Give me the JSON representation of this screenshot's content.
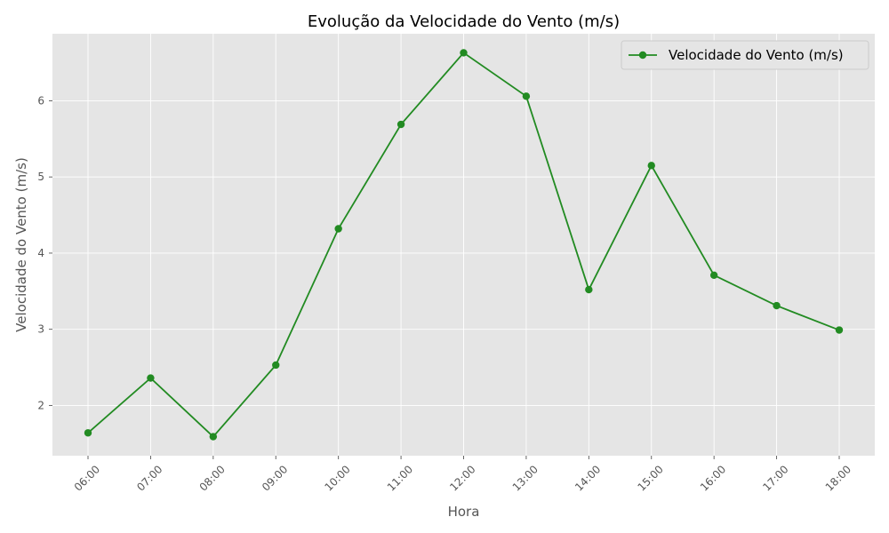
{
  "chart_data": {
    "type": "line",
    "title": "Evolução da Velocidade do Vento (m/s)",
    "xlabel": "Hora",
    "ylabel": "Velocidade do Vento (m/s)",
    "categories": [
      "06:00",
      "07:00",
      "08:00",
      "09:00",
      "10:00",
      "11:00",
      "12:00",
      "13:00",
      "14:00",
      "15:00",
      "16:00",
      "17:00",
      "18:00"
    ],
    "series": [
      {
        "name": "Velocidade do Vento (m/s)",
        "color": "#228b22",
        "marker": "circle",
        "values": [
          1.64,
          2.36,
          1.59,
          2.53,
          4.32,
          5.69,
          6.63,
          6.06,
          3.52,
          5.15,
          3.71,
          3.31,
          2.99
        ]
      }
    ],
    "ylim": [
      1.34,
      6.88
    ],
    "yticks": [
      2,
      3,
      4,
      5,
      6
    ],
    "grid": true,
    "legend_position": "top-right",
    "background_color": "#e5e5e5",
    "x_tick_rotation": 45
  }
}
